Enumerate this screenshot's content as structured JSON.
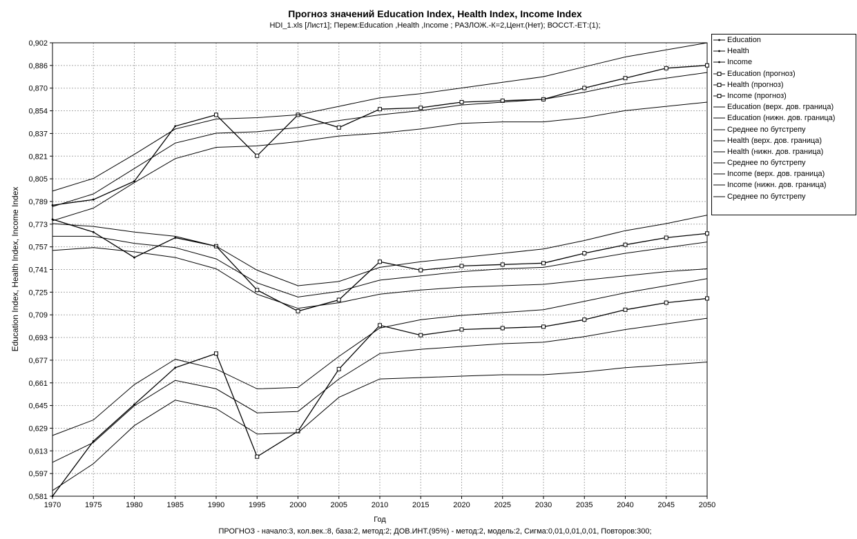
{
  "chart_data": {
    "type": "line",
    "title": "Прогноз значений Education Index, Health Index, Income Index",
    "subtitle": "HDI_1.xls [Лист1];    Перем:Education ,Health ,Income ;   РАЗЛОЖ.-К=2,Цент.(Нет);   ВОССТ.-ЕТ:(1);",
    "xlabel": "Год",
    "ylabel": "Education Index, Health Index, Income Index",
    "footer": "ПРОГНОЗ - начало:3, кол.век.:8, база:2, метод:2;  ДОВ.ИНТ.(95%) - метод:2, модель:2, Сигма:0,01,0,01,0,01, Повторов:300;",
    "xlim": [
      1970,
      2050
    ],
    "ylim": [
      0.581,
      0.902
    ],
    "x_ticks": [
      "1970",
      "1975",
      "1980",
      "1985",
      "1990",
      "1995",
      "2000",
      "2005",
      "2010",
      "2015",
      "2020",
      "2025",
      "2030",
      "2035",
      "2040",
      "2045",
      "2050"
    ],
    "y_ticks": [
      "0,902",
      "0,886",
      "0,870",
      "0,854",
      "0,837",
      "0,821",
      "0,805",
      "0,789",
      "0,773",
      "0,757",
      "0,741",
      "0,725",
      "0,709",
      "0,693",
      "0,677",
      "0,661",
      "0,645",
      "0,629",
      "0,613",
      "0,597",
      "0,581"
    ],
    "grid": true,
    "legend_position": "right",
    "series": [
      {
        "name": "Education",
        "marker": "dot",
        "x": [
          1970,
          1975,
          1980,
          1985,
          1990
        ],
        "y": [
          0.787,
          0.791,
          0.804,
          0.843,
          0.851
        ]
      },
      {
        "name": "Health",
        "marker": "dot",
        "x": [
          1970,
          1975,
          1980,
          1985,
          1990
        ],
        "y": [
          0.777,
          0.768,
          0.75,
          0.764,
          0.758
        ]
      },
      {
        "name": "Income",
        "marker": "dot",
        "x": [
          1970,
          1975,
          1980,
          1985,
          1990
        ],
        "y": [
          0.581,
          0.62,
          0.646,
          0.672,
          0.682
        ]
      },
      {
        "name": "Education (прогноз)",
        "marker": "square",
        "x": [
          1990,
          1995,
          2000,
          2005,
          2010,
          2015,
          2020,
          2025,
          2030,
          2035,
          2040,
          2045,
          2050
        ],
        "y": [
          0.851,
          0.822,
          0.851,
          0.842,
          0.855,
          0.856,
          0.86,
          0.861,
          0.862,
          0.87,
          0.877,
          0.884,
          0.886
        ]
      },
      {
        "name": "Health (прогноз)",
        "marker": "square",
        "x": [
          1990,
          1995,
          2000,
          2005,
          2010,
          2015,
          2020,
          2025,
          2030,
          2035,
          2040,
          2045,
          2050
        ],
        "y": [
          0.758,
          0.727,
          0.712,
          0.72,
          0.747,
          0.741,
          0.744,
          0.745,
          0.746,
          0.753,
          0.759,
          0.764,
          0.767
        ]
      },
      {
        "name": "Income (прогноз)",
        "marker": "square",
        "x": [
          1990,
          1995,
          2000,
          2005,
          2010,
          2015,
          2020,
          2025,
          2030,
          2035,
          2040,
          2045,
          2050
        ],
        "y": [
          0.682,
          0.609,
          0.627,
          0.671,
          0.702,
          0.695,
          0.699,
          0.7,
          0.701,
          0.706,
          0.713,
          0.718,
          0.721
        ]
      },
      {
        "name": "Education (верх. дов. граница)",
        "marker": "none",
        "x": [
          1970,
          1975,
          1980,
          1985,
          1990,
          1995,
          2000,
          2005,
          2010,
          2015,
          2020,
          2025,
          2030,
          2035,
          2040,
          2045,
          2050
        ],
        "y": [
          0.797,
          0.806,
          0.823,
          0.841,
          0.848,
          0.849,
          0.851,
          0.857,
          0.863,
          0.866,
          0.87,
          0.874,
          0.878,
          0.885,
          0.892,
          0.897,
          0.902
        ]
      },
      {
        "name": "Education (нижн. дов. граница)",
        "marker": "none",
        "x": [
          1970,
          1975,
          1980,
          1985,
          1990,
          1995,
          2000,
          2005,
          2010,
          2015,
          2020,
          2025,
          2030,
          2035,
          2040,
          2045,
          2050
        ],
        "y": [
          0.776,
          0.785,
          0.803,
          0.82,
          0.828,
          0.829,
          0.832,
          0.836,
          0.838,
          0.841,
          0.845,
          0.846,
          0.846,
          0.849,
          0.854,
          0.857,
          0.86
        ]
      },
      {
        "name": "Среднее по бутстрепу",
        "marker": "none",
        "x": [
          1970,
          1975,
          1980,
          1985,
          1990,
          1995,
          2000,
          2005,
          2010,
          2015,
          2020,
          2025,
          2030,
          2035,
          2040,
          2045,
          2050
        ],
        "y": [
          0.786,
          0.795,
          0.813,
          0.831,
          0.838,
          0.839,
          0.842,
          0.847,
          0.851,
          0.854,
          0.858,
          0.86,
          0.862,
          0.867,
          0.873,
          0.877,
          0.881
        ]
      },
      {
        "name": "Health (верх. дов. граница)",
        "marker": "none",
        "x": [
          1970,
          1975,
          1980,
          1985,
          1990,
          1995,
          2000,
          2005,
          2010,
          2015,
          2020,
          2025,
          2030,
          2035,
          2040,
          2045,
          2050
        ],
        "y": [
          0.774,
          0.772,
          0.768,
          0.765,
          0.758,
          0.741,
          0.73,
          0.733,
          0.743,
          0.747,
          0.75,
          0.753,
          0.756,
          0.762,
          0.769,
          0.774,
          0.78
        ]
      },
      {
        "name": "Health (нижн. дов. граница)",
        "marker": "none",
        "x": [
          1970,
          1975,
          1980,
          1985,
          1990,
          1995,
          2000,
          2005,
          2010,
          2015,
          2020,
          2025,
          2030,
          2035,
          2040,
          2045,
          2050
        ],
        "y": [
          0.755,
          0.757,
          0.754,
          0.75,
          0.742,
          0.724,
          0.714,
          0.718,
          0.724,
          0.727,
          0.729,
          0.73,
          0.731,
          0.734,
          0.737,
          0.74,
          0.742
        ]
      },
      {
        "name": "Среднее по бутстрепу",
        "marker": "none",
        "x": [
          1970,
          1975,
          1980,
          1985,
          1990,
          1995,
          2000,
          2005,
          2010,
          2015,
          2020,
          2025,
          2030,
          2035,
          2040,
          2045,
          2050
        ],
        "y": [
          0.765,
          0.765,
          0.76,
          0.757,
          0.749,
          0.732,
          0.722,
          0.726,
          0.734,
          0.737,
          0.74,
          0.742,
          0.743,
          0.748,
          0.753,
          0.757,
          0.761
        ]
      },
      {
        "name": "Income (верх. дов. граница)",
        "marker": "none",
        "x": [
          1970,
          1975,
          1980,
          1985,
          1990,
          1995,
          2000,
          2005,
          2010,
          2015,
          2020,
          2025,
          2030,
          2035,
          2040,
          2045,
          2050
        ],
        "y": [
          0.624,
          0.635,
          0.66,
          0.678,
          0.671,
          0.657,
          0.658,
          0.68,
          0.7,
          0.706,
          0.709,
          0.711,
          0.713,
          0.719,
          0.725,
          0.73,
          0.735
        ]
      },
      {
        "name": "Income (нижн. дов. граница)",
        "marker": "none",
        "x": [
          1970,
          1975,
          1980,
          1985,
          1990,
          1995,
          2000,
          2005,
          2010,
          2015,
          2020,
          2025,
          2030,
          2035,
          2040,
          2045,
          2050
        ],
        "y": [
          0.585,
          0.604,
          0.631,
          0.649,
          0.643,
          0.625,
          0.626,
          0.651,
          0.664,
          0.665,
          0.666,
          0.667,
          0.667,
          0.669,
          0.672,
          0.674,
          0.676
        ]
      },
      {
        "name": "Среднее по бутстрепу",
        "marker": "none",
        "x": [
          1970,
          1975,
          1980,
          1985,
          1990,
          1995,
          2000,
          2005,
          2010,
          2015,
          2020,
          2025,
          2030,
          2035,
          2040,
          2045,
          2050
        ],
        "y": [
          0.605,
          0.619,
          0.645,
          0.663,
          0.657,
          0.64,
          0.641,
          0.664,
          0.682,
          0.685,
          0.687,
          0.689,
          0.69,
          0.694,
          0.699,
          0.703,
          0.707
        ]
      }
    ]
  }
}
